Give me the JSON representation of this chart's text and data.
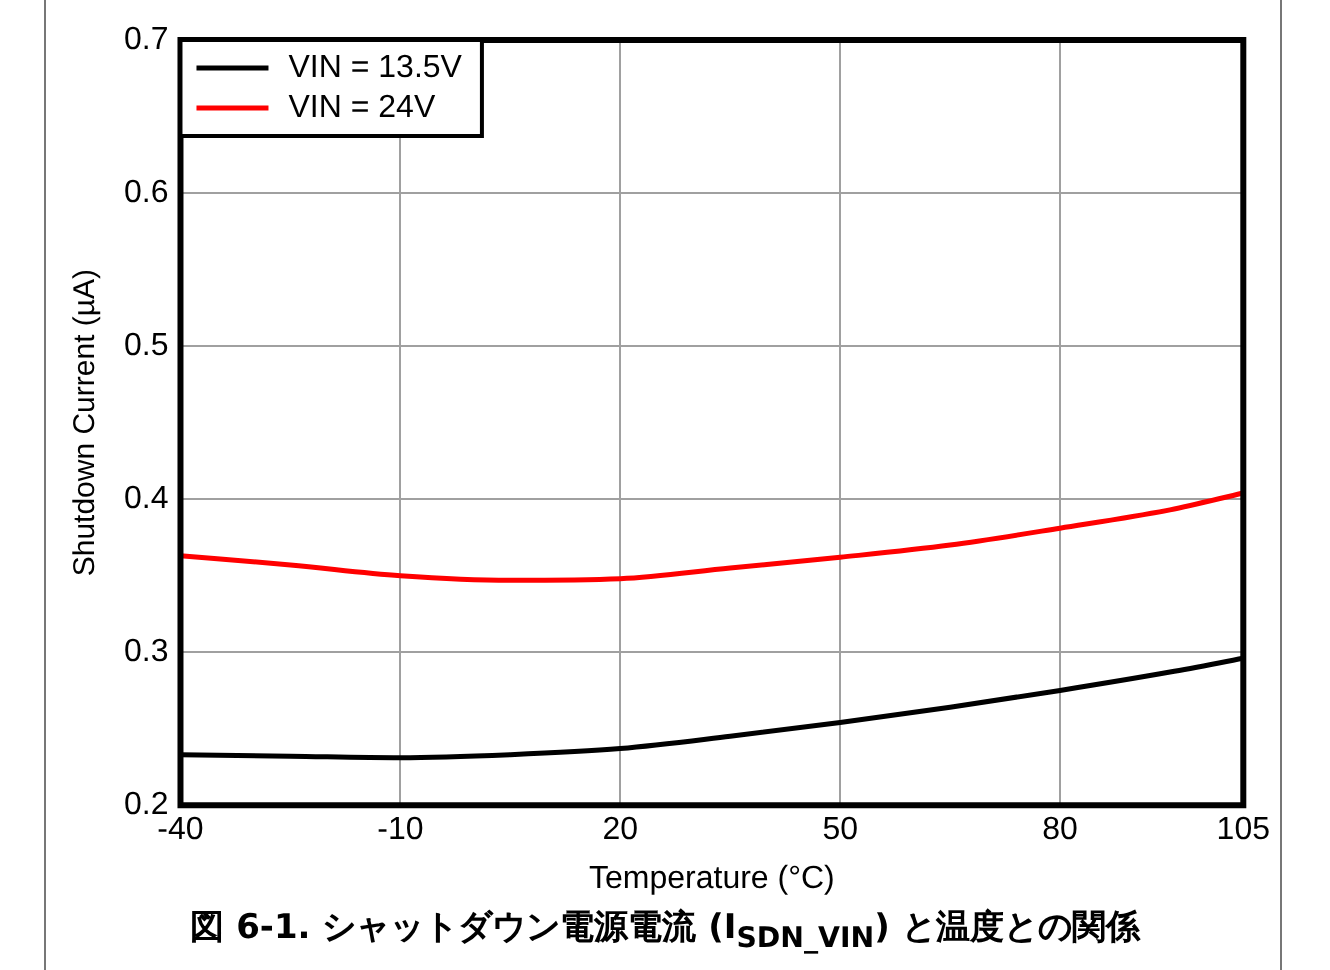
{
  "chart_data": {
    "type": "line",
    "title": "図 6-1. シャットダウン電源電流 (I$_{SDN_VIN}$) と温度との関係",
    "xlabel": "Temperature (°C)",
    "ylabel": "Shutdown Current (µA)",
    "x": [
      -40,
      -25,
      -10,
      5,
      20,
      35,
      50,
      65,
      80,
      95,
      105
    ],
    "series": [
      {
        "name": "VIN = 13.5V",
        "color": "#000000",
        "values": [
          0.233,
          0.232,
          0.231,
          0.233,
          0.237,
          0.245,
          0.254,
          0.264,
          0.275,
          0.287,
          0.296
        ]
      },
      {
        "name": "VIN = 24V",
        "color": "#ff0000",
        "values": [
          0.363,
          0.357,
          0.35,
          0.347,
          0.348,
          0.355,
          0.362,
          0.37,
          0.381,
          0.393,
          0.404
        ]
      }
    ],
    "xlim": [
      -40,
      105
    ],
    "xticks": [
      -40,
      -10,
      20,
      50,
      80,
      105
    ],
    "ylim": [
      0.2,
      0.7
    ],
    "yticks": [
      0.2,
      0.3,
      0.4,
      0.5,
      0.6,
      0.7
    ],
    "grid": true,
    "legend": "top left",
    "marker": "none",
    "line_style": "solid"
  }
}
